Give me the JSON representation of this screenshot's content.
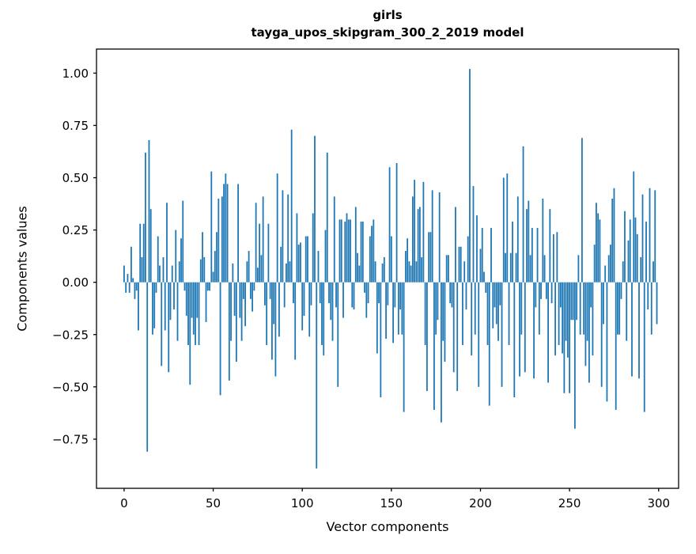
{
  "figure": {
    "title_line1": "girls",
    "title_line2": "tayga_upos_skipgram_300_2_2019 model",
    "xlabel": "Vector components",
    "ylabel": "Components values"
  },
  "chart_data": {
    "type": "bar",
    "title": "girls",
    "subtitle": "tayga_upos_skipgram_300_2_2019 model",
    "xlabel": "Vector components",
    "ylabel": "Components values",
    "bar_color": "#1f77b4",
    "spine_color": "#000000",
    "grid": false,
    "legend": null,
    "n_bars": 300,
    "xlim": [
      -15.5,
      311.2
    ],
    "ylim": [
      -0.985,
      1.115
    ],
    "xticks": [
      0,
      50,
      100,
      150,
      200,
      250,
      300
    ],
    "yticks": [
      1.0,
      0.75,
      0.5,
      0.25,
      0.0,
      -0.25,
      -0.5,
      -0.75
    ],
    "ytick_labels": [
      "1.00",
      "0.75",
      "0.50",
      "0.25",
      "0.00",
      "−0.25",
      "−0.50",
      "−0.75"
    ],
    "values": [
      0.08,
      -0.05,
      0.04,
      -0.05,
      0.17,
      0.02,
      -0.08,
      -0.04,
      -0.23,
      0.28,
      0.12,
      0.28,
      0.62,
      -0.81,
      0.68,
      0.35,
      -0.25,
      -0.22,
      -0.05,
      0.22,
      0.08,
      -0.4,
      0.12,
      -0.23,
      0.38,
      -0.43,
      -0.18,
      0.08,
      -0.13,
      0.25,
      -0.28,
      0.1,
      0.21,
      0.39,
      -0.04,
      -0.16,
      -0.3,
      -0.49,
      -0.17,
      -0.25,
      -0.3,
      -0.17,
      -0.3,
      0.11,
      0.24,
      0.12,
      -0.19,
      -0.04,
      -0.04,
      0.53,
      0.05,
      0.15,
      0.24,
      0.4,
      -0.54,
      0.41,
      0.47,
      0.52,
      0.47,
      -0.47,
      -0.28,
      0.09,
      -0.16,
      -0.38,
      0.47,
      -0.17,
      -0.28,
      -0.08,
      -0.21,
      0.1,
      0.15,
      -0.08,
      -0.14,
      -0.04,
      0.38,
      0.07,
      0.28,
      0.13,
      0.41,
      -0.11,
      -0.3,
      0.28,
      -0.08,
      -0.37,
      -0.2,
      -0.45,
      0.52,
      -0.26,
      0.17,
      0.44,
      -0.12,
      0.09,
      0.42,
      0.1,
      0.73,
      -0.1,
      -0.37,
      0.33,
      0.18,
      0.19,
      -0.23,
      -0.16,
      0.22,
      0.22,
      -0.26,
      -0.11,
      0.33,
      0.7,
      -0.89,
      0.15,
      -0.1,
      -0.3,
      -0.35,
      0.25,
      0.62,
      -0.1,
      -0.18,
      -0.28,
      0.41,
      -0.12,
      -0.5,
      0.3,
      0.3,
      -0.17,
      0.29,
      0.33,
      0.3,
      0.3,
      -0.12,
      -0.13,
      0.36,
      0.14,
      0.08,
      0.29,
      0.29,
      -0.05,
      -0.17,
      -0.1,
      0.22,
      0.27,
      0.3,
      0.1,
      -0.34,
      -0.1,
      -0.55,
      0.09,
      0.12,
      -0.27,
      -0.11,
      0.55,
      0.22,
      -0.29,
      -0.12,
      0.57,
      -0.25,
      -0.13,
      -0.25,
      -0.62,
      0.15,
      0.21,
      0.1,
      0.08,
      0.41,
      0.49,
      0.1,
      0.35,
      0.36,
      0.12,
      0.48,
      -0.3,
      -0.52,
      0.24,
      0.24,
      0.44,
      -0.61,
      -0.25,
      -0.18,
      0.43,
      -0.67,
      -0.28,
      -0.38,
      0.13,
      0.13,
      -0.1,
      -0.12,
      -0.43,
      0.36,
      -0.52,
      0.17,
      0.17,
      -0.3,
      0.1,
      -0.13,
      0.22,
      1.02,
      -0.35,
      0.46,
      -0.25,
      0.32,
      -0.5,
      0.16,
      0.26,
      0.05,
      -0.05,
      -0.3,
      -0.59,
      0.26,
      -0.22,
      -0.12,
      -0.2,
      -0.28,
      -0.11,
      -0.5,
      0.5,
      0.14,
      0.52,
      -0.3,
      0.14,
      0.29,
      -0.55,
      0.14,
      0.41,
      -0.45,
      -0.25,
      0.65,
      -0.43,
      0.35,
      0.39,
      0.13,
      0.26,
      -0.46,
      -0.12,
      0.26,
      -0.25,
      -0.08,
      0.4,
      0.13,
      -0.08,
      -0.48,
      0.35,
      -0.1,
      0.23,
      -0.35,
      0.24,
      -0.3,
      -0.12,
      -0.34,
      -0.53,
      -0.28,
      -0.36,
      -0.53,
      -0.18,
      -0.18,
      -0.7,
      -0.18,
      0.13,
      -0.25,
      0.69,
      -0.25,
      -0.4,
      -0.28,
      -0.48,
      -0.12,
      -0.35,
      0.18,
      0.38,
      0.33,
      0.3,
      -0.5,
      -0.2,
      0.08,
      -0.57,
      0.13,
      0.18,
      0.4,
      0.45,
      -0.61,
      -0.25,
      -0.25,
      -0.08,
      0.1,
      0.34,
      -0.28,
      0.2,
      0.3,
      -0.45,
      0.53,
      0.31,
      0.23,
      -0.46,
      0.12,
      0.42,
      -0.62,
      0.29,
      -0.13,
      0.45,
      -0.25,
      0.1,
      0.44,
      -0.2
    ]
  }
}
